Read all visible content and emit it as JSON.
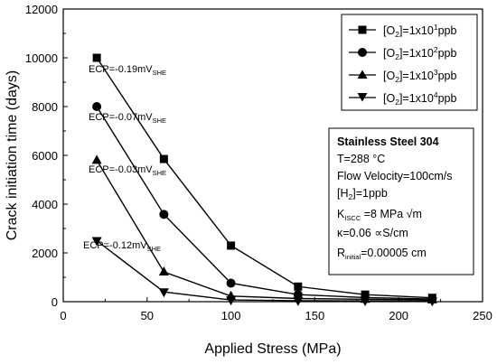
{
  "chart_data": {
    "type": "line",
    "xlabel": "Applied Stress (MPa)",
    "ylabel": "Crack initiation time (days)",
    "xlim": [
      0,
      250
    ],
    "ylim": [
      0,
      12000
    ],
    "xticks": [
      0,
      50,
      100,
      150,
      200,
      250
    ],
    "yticks": [
      0,
      2000,
      4000,
      6000,
      8000,
      10000,
      12000
    ],
    "x": [
      20,
      60,
      100,
      140,
      180,
      220
    ],
    "series": [
      {
        "name_main": "[O",
        "name_sub": "2",
        "name_mid": "]=1x10",
        "name_sup": "1",
        "name_end": "ppb",
        "marker": "square",
        "values": [
          10000,
          5850,
          2300,
          620,
          290,
          160
        ]
      },
      {
        "name_main": "[O",
        "name_sub": "2",
        "name_mid": "]=1x10",
        "name_sup": "2",
        "name_end": "ppb",
        "marker": "circle",
        "values": [
          8000,
          3580,
          760,
          290,
          170,
          110
        ]
      },
      {
        "name_main": "[O",
        "name_sub": "2",
        "name_mid": "]=1x10",
        "name_sup": "3",
        "name_end": "ppb",
        "marker": "triangle-up",
        "values": [
          5800,
          1220,
          230,
          130,
          100,
          80
        ]
      },
      {
        "name_main": "[O",
        "name_sub": "2",
        "name_mid": "]=1x10",
        "name_sup": "4",
        "name_end": "ppb",
        "marker": "triangle-down",
        "values": [
          2500,
          400,
          70,
          40,
          35,
          30
        ]
      }
    ],
    "annotations": [
      {
        "main": "ECP=-0.19mV",
        "sub": "SHE"
      },
      {
        "main": "ECP=-0.07mV",
        "sub": "SHE"
      },
      {
        "main": "ECP=-0.03mV",
        "sub": "SHE"
      },
      {
        "main": "ECP=-0.12mV",
        "sub": "SHE"
      }
    ],
    "legend_position": "top-right",
    "grid": false
  },
  "info_box": {
    "title": "Stainless Steel 304",
    "temperature": "T=288 °C",
    "flow": "Flow Velocity=100cm/s",
    "h2_main": "[H",
    "h2_sub": "2",
    "h2_end": "]=1ppb",
    "k_main": "K",
    "k_sub": "ISCC",
    "k_end": " =8 MPa √m",
    "kappa": "κ=0.06 ∝S/cm",
    "r_main": "R",
    "r_sub": "initial",
    "r_end": "=0.00005 cm"
  }
}
